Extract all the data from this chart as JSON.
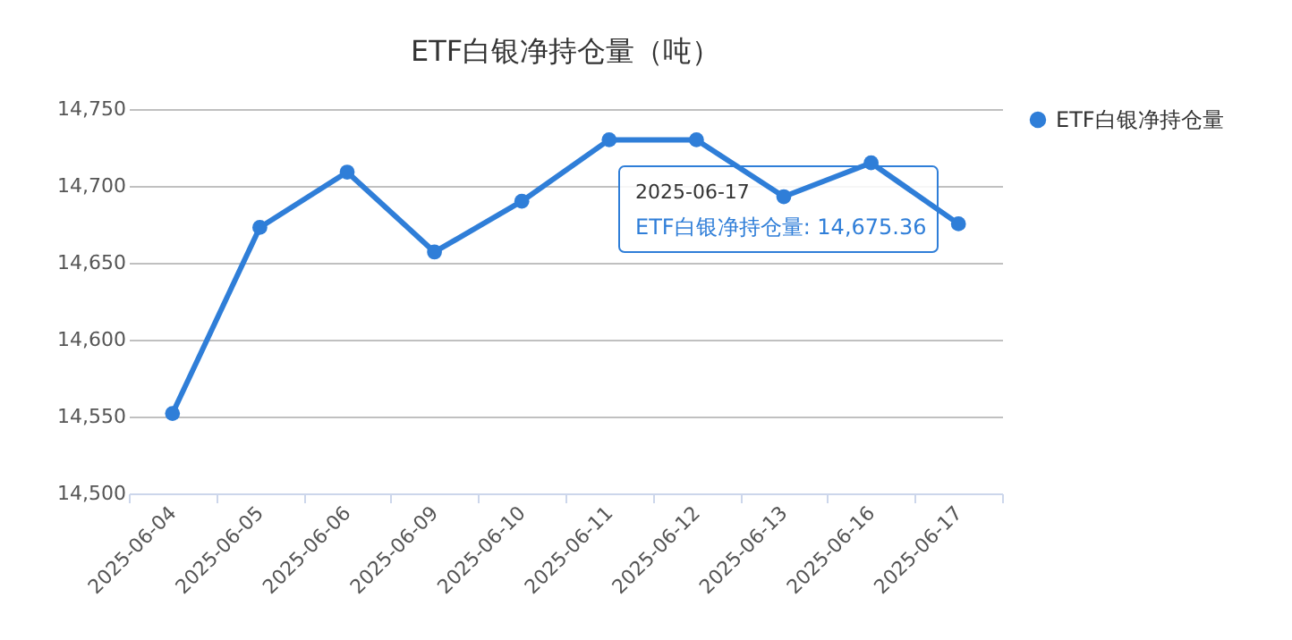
{
  "chart_data": {
    "type": "line",
    "title": "ETF白银净持仓量（吨）",
    "categories": [
      "2025-06-04",
      "2025-06-05",
      "2025-06-06",
      "2025-06-09",
      "2025-06-10",
      "2025-06-11",
      "2025-06-12",
      "2025-06-13",
      "2025-06-16",
      "2025-06-17"
    ],
    "series": [
      {
        "name": "ETF白银净持仓量",
        "color": "#2f7ed8",
        "values": [
          14552,
          14673,
          14709,
          14657,
          14690,
          14730,
          14730,
          14693,
          14715,
          14675.36
        ]
      }
    ],
    "ylim": [
      14500,
      14750
    ],
    "yticks": [
      {
        "value": 14500,
        "label": "14,500"
      },
      {
        "value": 14550,
        "label": "14,550"
      },
      {
        "value": 14600,
        "label": "14,600"
      },
      {
        "value": 14650,
        "label": "14,650"
      },
      {
        "value": 14700,
        "label": "14,700"
      },
      {
        "value": 14750,
        "label": "14,750"
      }
    ],
    "grid": "y",
    "legend": "right",
    "marker": "circle",
    "annotations": [
      "2025-06-17",
      "ETF白银净持仓量: 14,675.36"
    ]
  }
}
